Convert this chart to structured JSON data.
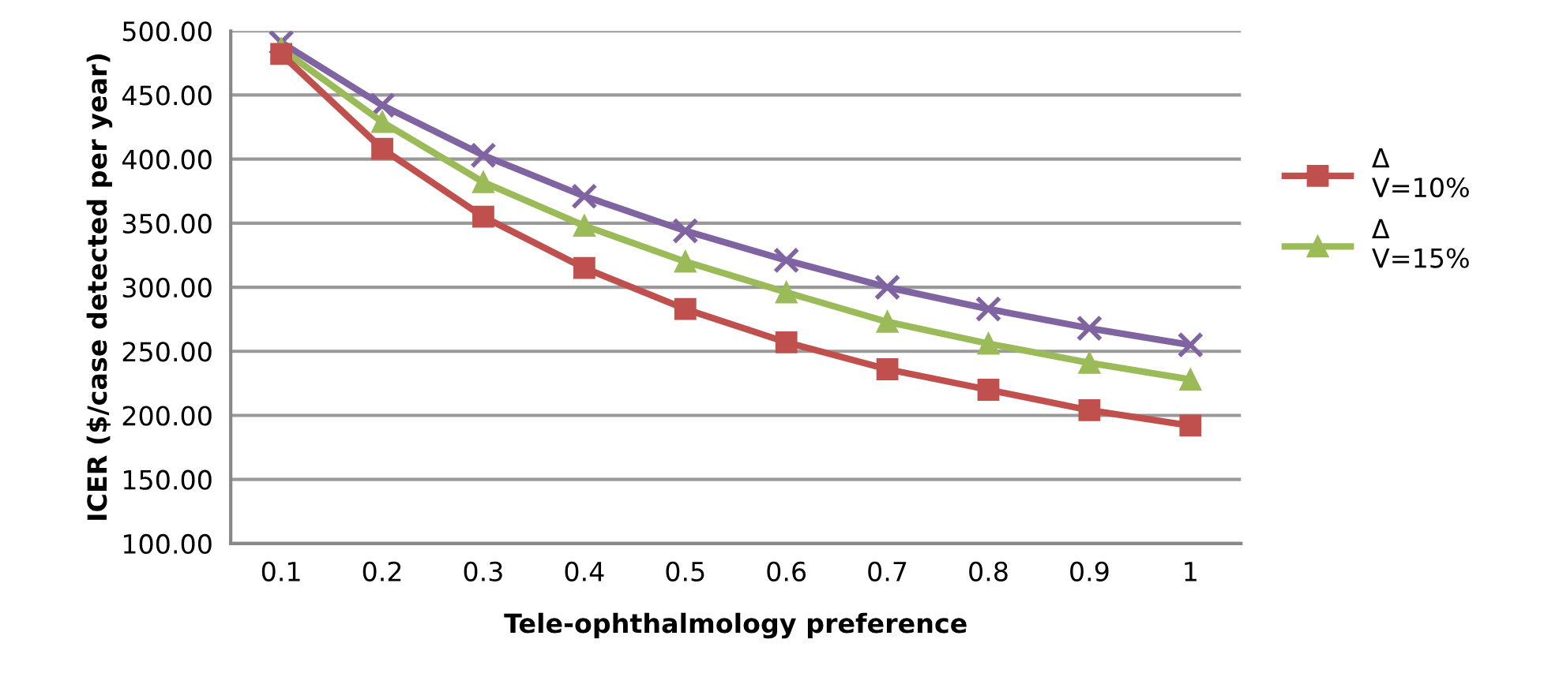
{
  "chart_data": {
    "type": "line",
    "xlabel": "Tele-ophthalmology preference",
    "ylabel": "ICER ($/case detected per year)",
    "categories": [
      "0.1",
      "0.2",
      "0.3",
      "0.4",
      "0.5",
      "0.6",
      "0.7",
      "0.8",
      "0.9",
      "1"
    ],
    "series": [
      {
        "name": "Δ\nV=10%",
        "color": "#c0504d",
        "marker": "square",
        "values": [
          482,
          408,
          355,
          315,
          283,
          257,
          236,
          220,
          204,
          192
        ]
      },
      {
        "name": "Δ\nV=15%",
        "color": "#9bbb59",
        "marker": "triangle",
        "values": [
          486,
          429,
          382,
          348,
          320,
          296,
          273,
          256,
          241,
          228
        ]
      },
      {
        "color": "#8064a2",
        "marker": "cross",
        "values": [
          491,
          442,
          403,
          371,
          344,
          321,
          300,
          283,
          268,
          255
        ]
      }
    ],
    "ylim": [
      100,
      500
    ],
    "yticks": [
      {
        "value": 100,
        "label": "100.00"
      },
      {
        "value": 150,
        "label": "150.00"
      },
      {
        "value": 200,
        "label": "200.00"
      },
      {
        "value": 250,
        "label": "250.00"
      },
      {
        "value": 300,
        "label": "300.00"
      },
      {
        "value": 350,
        "label": "350.00"
      },
      {
        "value": 400,
        "label": "400.00"
      },
      {
        "value": 450,
        "label": "450.00"
      },
      {
        "value": 500,
        "label": "500.00"
      }
    ],
    "grid": "y",
    "legend": "right",
    "line_style": "solid"
  }
}
